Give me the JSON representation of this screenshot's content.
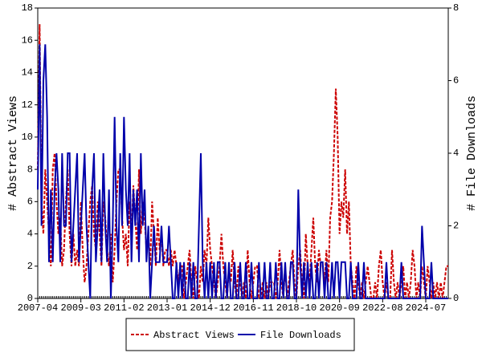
{
  "chart_data": {
    "type": "line",
    "x": [
      "2007-04",
      "2007-05",
      "2007-06",
      "2007-07",
      "2007-08",
      "2007-09",
      "2007-10",
      "2007-11",
      "2007-12",
      "2008-01",
      "2008-02",
      "2008-03",
      "2008-04",
      "2008-05",
      "2008-06",
      "2008-07",
      "2008-08",
      "2008-09",
      "2008-10",
      "2008-11",
      "2008-12",
      "2009-01",
      "2009-02",
      "2009-03",
      "2009-04",
      "2009-05",
      "2009-06",
      "2009-07",
      "2009-08",
      "2009-09",
      "2009-10",
      "2009-11",
      "2009-12",
      "2010-01",
      "2010-02",
      "2010-03",
      "2010-04",
      "2010-05",
      "2010-06",
      "2010-07",
      "2010-08",
      "2010-09",
      "2010-10",
      "2010-11",
      "2010-12",
      "2011-01",
      "2011-02",
      "2011-03",
      "2011-04",
      "2011-05",
      "2011-06",
      "2011-07",
      "2011-08",
      "2011-09",
      "2011-10",
      "2011-11",
      "2011-12",
      "2012-01",
      "2012-02",
      "2012-03",
      "2012-04",
      "2012-05",
      "2012-06",
      "2012-07",
      "2012-08",
      "2012-09",
      "2012-10",
      "2012-11",
      "2012-12",
      "2013-01",
      "2013-02",
      "2013-03",
      "2013-04",
      "2013-05",
      "2013-06",
      "2013-07",
      "2013-08",
      "2013-09",
      "2013-10",
      "2013-11",
      "2013-12",
      "2014-01",
      "2014-02",
      "2014-03",
      "2014-04",
      "2014-05",
      "2014-06",
      "2014-07",
      "2014-08",
      "2014-09",
      "2014-10",
      "2014-11",
      "2014-12",
      "2015-01",
      "2015-02",
      "2015-03",
      "2015-04",
      "2015-05",
      "2015-06",
      "2015-07",
      "2015-08",
      "2015-09",
      "2015-10",
      "2015-11",
      "2015-12",
      "2016-01",
      "2016-02",
      "2016-03",
      "2016-04",
      "2016-05",
      "2016-06",
      "2016-07",
      "2016-08",
      "2016-09",
      "2016-10",
      "2016-11",
      "2016-12",
      "2017-01",
      "2017-02",
      "2017-03",
      "2017-04",
      "2017-05",
      "2017-06",
      "2017-07",
      "2017-08",
      "2017-09",
      "2017-10",
      "2017-11",
      "2017-12",
      "2018-01",
      "2018-02",
      "2018-03",
      "2018-04",
      "2018-05",
      "2018-06",
      "2018-07",
      "2018-08",
      "2018-09",
      "2018-10",
      "2018-11",
      "2018-12",
      "2019-01",
      "2019-02",
      "2019-03",
      "2019-04",
      "2019-05",
      "2019-06",
      "2019-07",
      "2019-08",
      "2019-09",
      "2019-10",
      "2019-11",
      "2019-12",
      "2020-01",
      "2020-02",
      "2020-03",
      "2020-04",
      "2020-05",
      "2020-06",
      "2020-07",
      "2020-08",
      "2020-09",
      "2020-10",
      "2020-11",
      "2020-12",
      "2021-01",
      "2021-02",
      "2021-03",
      "2021-04",
      "2021-05",
      "2021-06",
      "2021-07",
      "2021-08",
      "2021-09",
      "2021-10",
      "2021-11",
      "2021-12",
      "2022-01",
      "2022-02",
      "2022-03",
      "2022-04",
      "2022-05",
      "2022-06",
      "2022-07",
      "2022-08",
      "2022-09",
      "2022-10",
      "2022-11",
      "2022-12",
      "2023-01",
      "2023-02",
      "2023-03",
      "2023-04",
      "2023-05",
      "2023-06",
      "2023-07",
      "2023-08",
      "2023-09",
      "2023-10",
      "2023-11",
      "2023-12",
      "2024-01",
      "2024-02",
      "2024-03",
      "2024-04",
      "2024-05",
      "2024-06",
      "2024-07",
      "2024-08",
      "2024-09",
      "2024-10",
      "2024-11",
      "2024-12",
      "2025-01",
      "2025-02",
      "2025-03",
      "2025-04",
      "2025-05",
      "2025-06",
      "2025-07"
    ],
    "xticks": [
      "2007-04",
      "2009-03",
      "2011-02",
      "2013-01",
      "2014-12",
      "2016-11",
      "2018-10",
      "2020-09",
      "2022-08",
      "2024-07"
    ],
    "ylabel": "# Abstract Views",
    "y2label": "# File Downloads",
    "ylim": [
      0,
      18
    ],
    "yticks": [
      0,
      2,
      4,
      6,
      8,
      10,
      12,
      14,
      16,
      18
    ],
    "y2lim": [
      0,
      8
    ],
    "y2ticks": [
      0,
      2,
      4,
      6,
      8
    ],
    "series": [
      {
        "name": "Abstract Views",
        "color": "#cc0000",
        "dashed": true,
        "values": [
          8,
          17,
          6,
          4,
          8,
          6,
          4,
          2,
          8,
          9,
          6,
          4,
          5,
          2,
          3,
          6,
          8,
          4,
          2,
          4,
          2,
          3,
          2,
          6,
          3,
          1,
          2,
          4,
          6,
          7,
          4,
          3,
          6,
          4,
          2,
          6,
          5,
          3,
          2,
          4,
          1,
          3,
          6,
          8,
          8,
          5,
          3,
          4,
          2,
          6,
          4,
          7,
          5,
          3,
          8,
          4,
          6,
          5,
          3,
          4,
          2,
          6,
          4,
          2,
          5,
          3,
          4,
          2,
          3,
          3,
          2,
          3,
          2,
          3,
          2,
          1,
          2,
          2,
          0,
          1,
          2,
          3,
          1,
          0,
          2,
          1,
          0,
          2,
          1,
          3,
          2,
          5,
          3,
          2,
          1,
          0,
          1,
          2,
          4,
          2,
          1,
          0,
          2,
          1,
          3,
          1,
          0,
          2,
          1,
          0,
          1,
          0,
          3,
          1,
          0,
          1,
          2,
          2,
          0,
          0,
          1,
          0,
          1,
          0,
          1,
          1,
          1,
          0,
          1,
          3,
          1,
          0,
          2,
          0,
          1,
          2,
          3,
          1,
          0,
          2,
          3,
          1,
          0,
          4,
          2,
          1,
          3,
          5,
          2,
          1,
          3,
          2,
          2,
          1,
          3,
          1,
          5,
          6,
          9,
          13,
          10,
          4,
          6,
          5,
          8,
          4,
          6,
          2,
          1,
          0,
          2,
          1,
          0,
          1,
          0,
          1,
          2,
          1,
          0,
          0,
          1,
          0,
          2,
          3,
          1,
          0,
          1,
          0,
          0,
          3,
          1,
          0,
          1,
          0,
          1,
          2,
          0,
          1,
          0,
          1,
          3,
          2,
          0,
          1,
          0,
          2,
          1,
          0,
          2,
          1,
          0,
          1,
          0,
          1,
          0,
          1,
          0,
          1,
          2,
          2
        ]
      },
      {
        "name": "File Downloads",
        "color": "#0000aa",
        "dashed": false,
        "axis": "y2",
        "values": [
          3,
          7,
          2,
          6,
          7,
          5,
          1,
          3,
          1,
          3,
          4,
          3,
          1,
          4,
          2,
          2,
          4,
          4,
          1,
          2,
          3,
          4,
          1,
          2,
          3,
          4,
          2,
          1,
          0,
          3,
          4,
          1,
          2,
          3,
          1,
          4,
          2,
          1,
          3,
          0,
          2,
          5,
          2,
          1,
          4,
          2,
          5,
          3,
          2,
          4,
          1,
          3,
          2,
          3,
          1,
          4,
          2,
          3,
          1,
          2,
          0,
          1,
          2,
          1,
          1,
          1,
          2,
          1,
          1,
          1,
          2,
          1,
          0,
          0,
          1,
          0,
          1,
          0,
          1,
          0,
          0,
          1,
          0,
          1,
          0,
          0,
          2,
          4,
          1,
          0,
          1,
          0,
          1,
          0,
          1,
          0,
          1,
          1,
          0,
          0,
          1,
          0,
          1,
          0,
          0,
          1,
          0,
          0,
          1,
          0,
          0,
          1,
          0,
          0,
          1,
          0,
          0,
          0,
          1,
          0,
          0,
          1,
          0,
          0,
          1,
          0,
          0,
          1,
          0,
          0,
          1,
          0,
          1,
          0,
          0,
          1,
          1,
          0,
          0,
          3,
          1,
          0,
          1,
          0,
          1,
          0,
          1,
          0,
          0,
          1,
          0,
          1,
          1,
          0,
          1,
          0,
          0,
          1,
          0,
          1,
          1,
          0,
          1,
          1,
          1,
          0,
          0,
          1,
          0,
          0,
          0,
          1,
          0,
          0,
          1,
          0,
          0,
          0,
          0,
          0,
          0,
          0,
          0,
          0,
          0,
          0,
          1,
          0,
          0,
          0,
          0,
          0,
          0,
          0,
          1,
          0,
          0,
          0,
          0,
          0,
          0,
          0,
          0,
          0,
          0,
          2,
          1,
          0,
          0,
          0,
          1,
          0,
          0,
          0,
          0,
          0,
          0,
          0,
          0,
          0
        ]
      }
    ]
  }
}
